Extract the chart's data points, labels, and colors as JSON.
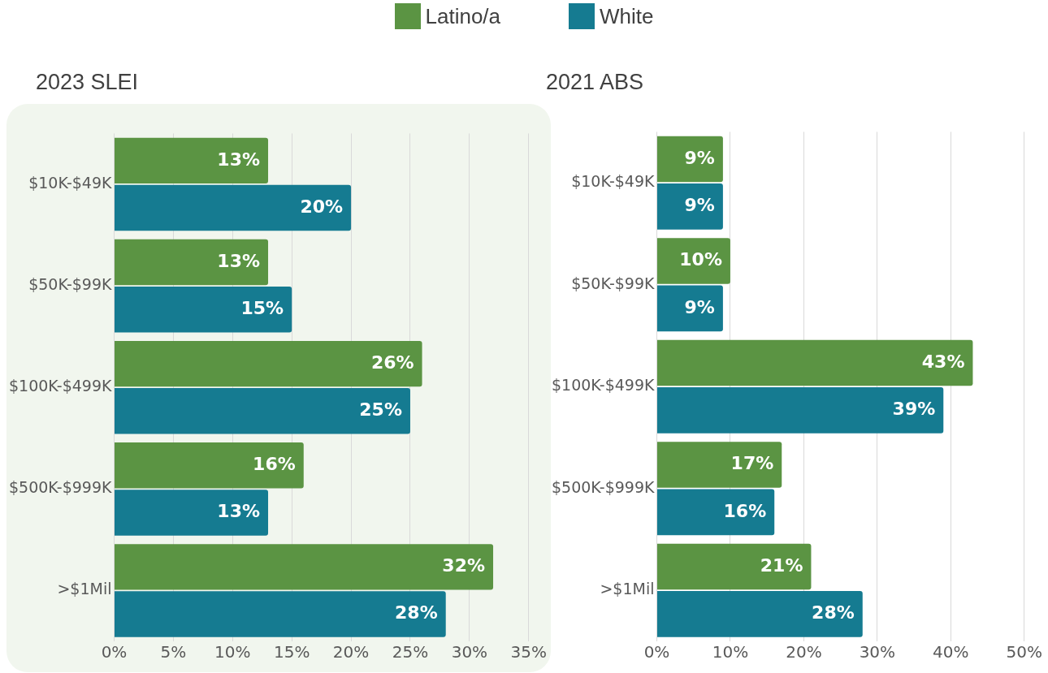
{
  "chart_data": [
    {
      "type": "bar",
      "title": "2023 SLEI",
      "orientation": "horizontal",
      "categories": [
        "$10K-$49K",
        "$50K-$99K",
        "$100K-$499K",
        "$500K-$999K",
        ">$1Mil"
      ],
      "series": [
        {
          "name": "Latino/a",
          "color": "#5b9443",
          "values": [
            13,
            13,
            26,
            16,
            32
          ],
          "value_labels": [
            "13%",
            "13%",
            "26%",
            "16%",
            "32%"
          ]
        },
        {
          "name": "White",
          "color": "#157b91",
          "values": [
            20,
            15,
            25,
            13,
            28
          ],
          "value_labels": [
            "20%",
            "15%",
            "25%",
            "13%",
            "28%"
          ]
        }
      ],
      "xlim": [
        0,
        35
      ],
      "xticks": [
        {
          "value": 0,
          "label": "0%"
        },
        {
          "value": 5,
          "label": "5%"
        },
        {
          "value": 10,
          "label": "10%"
        },
        {
          "value": 15,
          "label": "15%"
        },
        {
          "value": 20,
          "label": "20%"
        },
        {
          "value": 25,
          "label": "25%"
        },
        {
          "value": 30,
          "label": "30%"
        },
        {
          "value": 35,
          "label": "35%"
        }
      ],
      "grid": "x",
      "legend": "top"
    },
    {
      "type": "bar",
      "title": "2021 ABS",
      "orientation": "horizontal",
      "categories": [
        "$10K-$49K",
        "$50K-$99K",
        "$100K-$499K",
        "$500K-$999K",
        ">$1Mil"
      ],
      "series": [
        {
          "color": "#5b9443",
          "values": [
            9,
            10,
            43,
            17,
            21
          ],
          "value_labels": [
            "9%",
            "10%",
            "43%",
            "17%",
            "21%"
          ]
        },
        {
          "color": "#157b91",
          "values": [
            9,
            9,
            39,
            16,
            28
          ],
          "value_labels": [
            "9%",
            "9%",
            "39%",
            "16%",
            "28%"
          ]
        }
      ],
      "xlim": [
        0,
        50
      ],
      "xticks": [
        {
          "value": 0,
          "label": "0%"
        },
        {
          "value": 10,
          "label": "10%"
        },
        {
          "value": 20,
          "label": "20%"
        },
        {
          "value": 30,
          "label": "30%"
        },
        {
          "value": 40,
          "label": "40%"
        },
        {
          "value": 50,
          "label": "50%"
        }
      ],
      "grid": "x",
      "legend": false
    }
  ]
}
